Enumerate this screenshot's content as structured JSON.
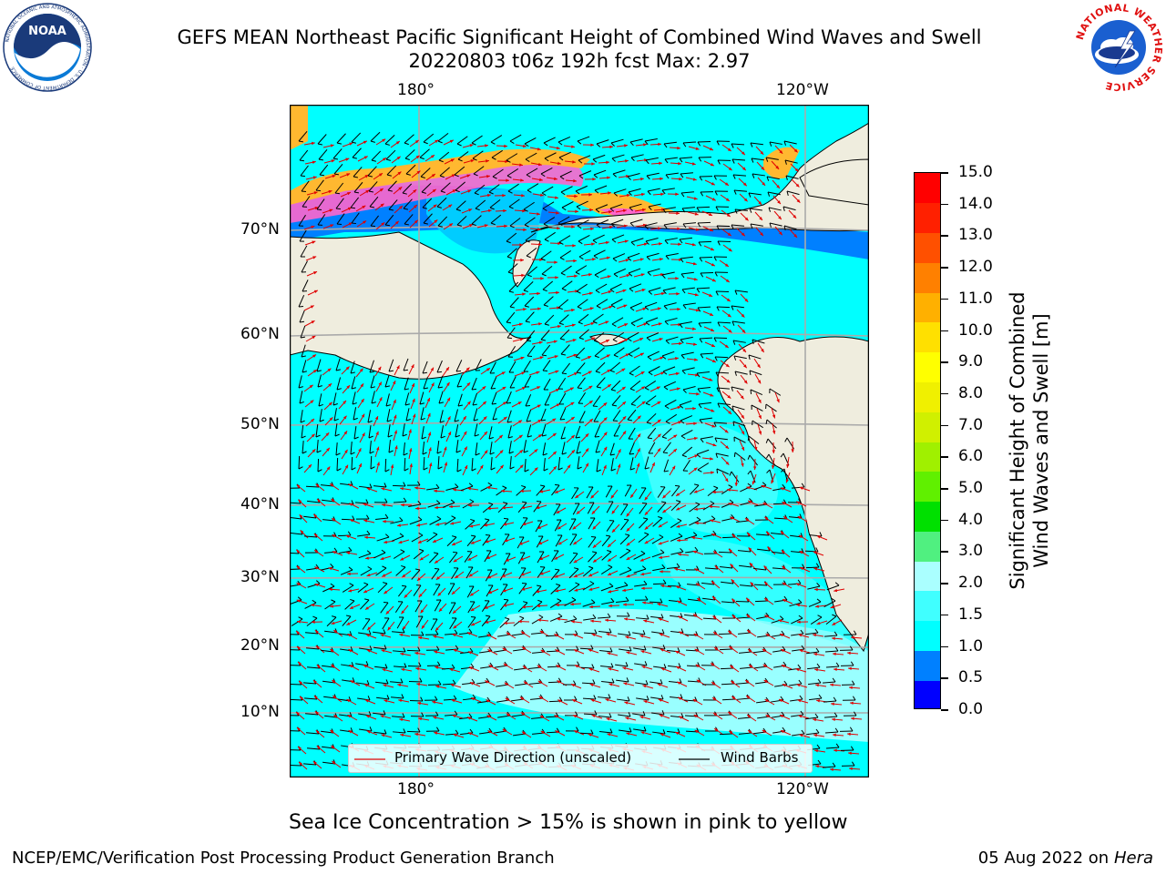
{
  "header": {
    "title_line1": "GEFS MEAN Northeast Pacific Significant Height of Combined Wind Waves and Swell",
    "title_line2": "20220803 t06z 192h fcst   Max: 2.97"
  },
  "logos": {
    "noaa_text": "NOAA",
    "noaa_ring": "NATIONAL OCEANIC AND ATMOSPHERIC ADMINISTRATION · U.S. DEPARTMENT OF COMMERCE",
    "nws_ring": "NATIONAL WEATHER SERVICE"
  },
  "map": {
    "lon_labels": [
      "180°",
      "120°W"
    ],
    "lat_labels": [
      "70°N",
      "60°N",
      "50°N",
      "40°N",
      "30°N",
      "20°N",
      "10°N"
    ],
    "legend": {
      "wave_label": "Primary Wave Direction (unscaled)",
      "wind_label": "Wind Barbs",
      "wave_color": "#e00000",
      "wind_color": "#000000"
    },
    "colors": {
      "land": "#efedde",
      "ocean_main": "#00ffff",
      "ice_pink": "#ff66cc",
      "ice_orange": "#ffb830"
    }
  },
  "colorbar": {
    "label_line1": "Significant Height of Combined",
    "label_line2": "Wind Waves and Swell [m]",
    "ticks": [
      "15.0",
      "14.0",
      "13.0",
      "12.0",
      "11.0",
      "10.0",
      "9.0",
      "8.0",
      "7.0",
      "6.0",
      "5.0",
      "4.0",
      "3.0",
      "2.0",
      "1.5",
      "1.0",
      "0.5",
      "0.0"
    ],
    "colors": [
      "#0000ff",
      "#0080ff",
      "#00ffff",
      "#40ffff",
      "#aaffff",
      "#50f080",
      "#00e000",
      "#60f000",
      "#a0f000",
      "#d0f000",
      "#f0f000",
      "#ffff00",
      "#ffe000",
      "#ffb000",
      "#ff8000",
      "#ff5000",
      "#ff2000",
      "#ff0000"
    ]
  },
  "caption": "Sea Ice Concentration > 15% is shown in pink to yellow",
  "footer": {
    "left": "NCEP/EMC/Verification Post Processing Product Generation Branch",
    "date": "05 Aug 2022 on",
    "machine": "Hera"
  }
}
